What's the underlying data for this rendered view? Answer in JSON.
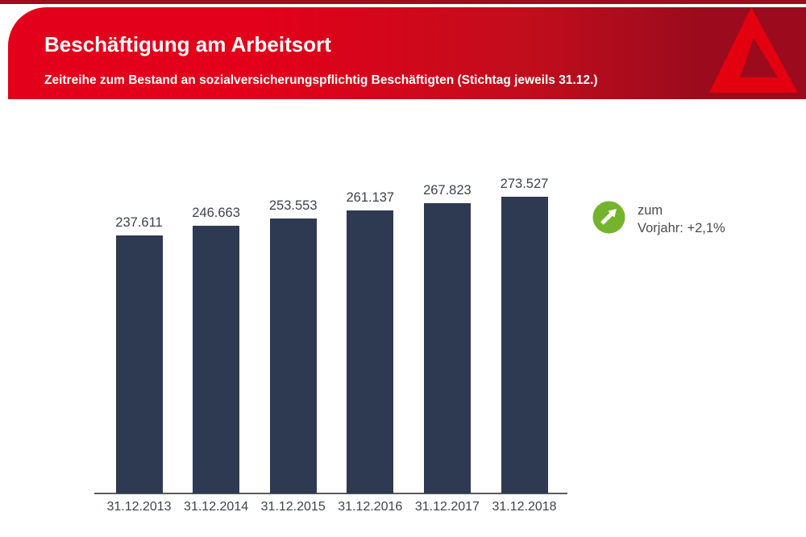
{
  "header": {
    "title": "Beschäftigung am Arbeitsort",
    "subtitle": "Zeitreihe zum Bestand an sozialversicherungspflichtig Beschäftigten (Stichtag jeweils 31.12.)",
    "logo": "bundesagentur-fuer-arbeit-a-logo",
    "colors": {
      "banner_red": "#e2001a",
      "banner_dark_red": "#9c0b1d",
      "logo_red": "#e3000f",
      "text": "#ffffff"
    }
  },
  "chart_data": {
    "type": "bar",
    "title": "Beschäftigung am Arbeitsort",
    "xlabel": "",
    "ylabel": "",
    "categories": [
      "31.12.2013",
      "31.12.2014",
      "31.12.2015",
      "31.12.2016",
      "31.12.2017",
      "31.12.2018"
    ],
    "values": [
      237611,
      246663,
      253553,
      261137,
      267823,
      273527
    ],
    "value_labels": [
      "237.611",
      "246.663",
      "253.553",
      "261.137",
      "267.823",
      "273.527"
    ],
    "ylim": [
      0,
      280000
    ],
    "grid": false,
    "legend_position": "none",
    "bar_color": "#2e3a52",
    "label_color": "#3e434e",
    "annotation": {
      "icon": "arrow-up-right-icon",
      "icon_color": "#74b42c",
      "line1": "zum",
      "line2": "Vorjahr: +2,1%"
    }
  }
}
